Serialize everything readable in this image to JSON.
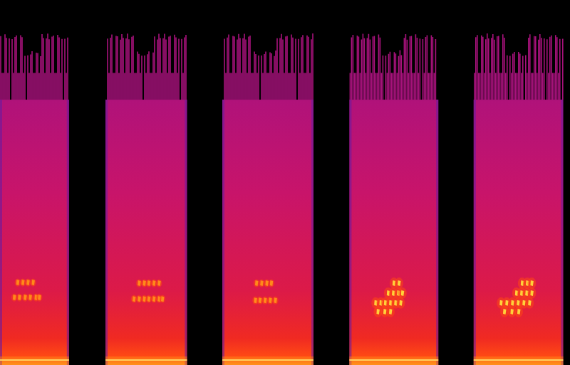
{
  "chart_data": {
    "type": "spectrogram",
    "tick_labels": false,
    "xlim": [
      0,
      100
    ],
    "ylim": [
      0,
      100
    ],
    "segments": [
      {
        "start": 0,
        "end": 12.1,
        "top": 91,
        "streak_top": 72.7,
        "level": 0.6,
        "notes": [
          {
            "t": 3.1,
            "f": 22.6
          },
          {
            "t": 4.0,
            "f": 22.6
          },
          {
            "t": 4.9,
            "f": 22.6
          },
          {
            "t": 5.8,
            "f": 22.6
          },
          {
            "t": 2.5,
            "f": 18.5
          },
          {
            "t": 3.4,
            "f": 18.5
          },
          {
            "t": 4.4,
            "f": 18.5
          },
          {
            "t": 5.3,
            "f": 18.5
          },
          {
            "t": 6.3,
            "f": 18.5
          },
          {
            "t": 6.9,
            "f": 18.5
          }
        ]
      },
      {
        "start": 18.5,
        "end": 32.8,
        "top": 91,
        "streak_top": 72.7,
        "level": 0.6,
        "notes": [
          {
            "t": 24.4,
            "f": 22.4
          },
          {
            "t": 25.3,
            "f": 22.4
          },
          {
            "t": 26.1,
            "f": 22.4
          },
          {
            "t": 27.0,
            "f": 22.4
          },
          {
            "t": 27.9,
            "f": 22.4
          },
          {
            "t": 23.5,
            "f": 18.1
          },
          {
            "t": 24.4,
            "f": 18.1
          },
          {
            "t": 25.3,
            "f": 18.1
          },
          {
            "t": 26.1,
            "f": 18.1
          },
          {
            "t": 27.0,
            "f": 18.1
          },
          {
            "t": 27.9,
            "f": 18.1
          },
          {
            "t": 28.5,
            "f": 18.1
          }
        ]
      },
      {
        "start": 39,
        "end": 55,
        "top": 91,
        "streak_top": 72.7,
        "level": 0.6,
        "notes": [
          {
            "t": 45.0,
            "f": 22.4
          },
          {
            "t": 45.9,
            "f": 22.4
          },
          {
            "t": 46.8,
            "f": 22.4
          },
          {
            "t": 47.6,
            "f": 22.4
          },
          {
            "t": 44.8,
            "f": 17.7
          },
          {
            "t": 45.6,
            "f": 17.7
          },
          {
            "t": 46.5,
            "f": 17.7
          },
          {
            "t": 47.4,
            "f": 17.7
          },
          {
            "t": 48.3,
            "f": 17.7
          }
        ]
      },
      {
        "start": 61.3,
        "end": 76.9,
        "top": 91,
        "streak_top": 72.7,
        "level": 1,
        "notes": [
          {
            "t": 69.1,
            "f": 22.4
          },
          {
            "t": 70.0,
            "f": 22.4
          },
          {
            "t": 68.1,
            "f": 19.7
          },
          {
            "t": 69.0,
            "f": 19.7
          },
          {
            "t": 69.9,
            "f": 19.7
          },
          {
            "t": 70.6,
            "f": 19.7
          },
          {
            "t": 65.9,
            "f": 17.0
          },
          {
            "t": 66.8,
            "f": 17.0
          },
          {
            "t": 67.6,
            "f": 17.0
          },
          {
            "t": 68.5,
            "f": 17.0
          },
          {
            "t": 69.4,
            "f": 17.0
          },
          {
            "t": 70.3,
            "f": 17.0
          },
          {
            "t": 66.3,
            "f": 14.6
          },
          {
            "t": 67.5,
            "f": 14.6
          },
          {
            "t": 68.5,
            "f": 14.6
          }
        ]
      },
      {
        "start": 83.1,
        "end": 98.8,
        "top": 91,
        "streak_top": 72.7,
        "level": 1,
        "notes": [
          {
            "t": 91.6,
            "f": 22.4
          },
          {
            "t": 92.5,
            "f": 22.4
          },
          {
            "t": 93.3,
            "f": 22.4
          },
          {
            "t": 90.6,
            "f": 19.7
          },
          {
            "t": 91.5,
            "f": 19.7
          },
          {
            "t": 92.4,
            "f": 19.7
          },
          {
            "t": 93.3,
            "f": 19.7
          },
          {
            "t": 87.9,
            "f": 17.0
          },
          {
            "t": 88.9,
            "f": 17.0
          },
          {
            "t": 89.9,
            "f": 17.0
          },
          {
            "t": 90.9,
            "f": 17.0
          },
          {
            "t": 91.9,
            "f": 17.0
          },
          {
            "t": 92.9,
            "f": 17.0
          },
          {
            "t": 88.5,
            "f": 14.6
          },
          {
            "t": 89.8,
            "f": 14.6
          },
          {
            "t": 91.0,
            "f": 14.6
          }
        ]
      }
    ]
  }
}
